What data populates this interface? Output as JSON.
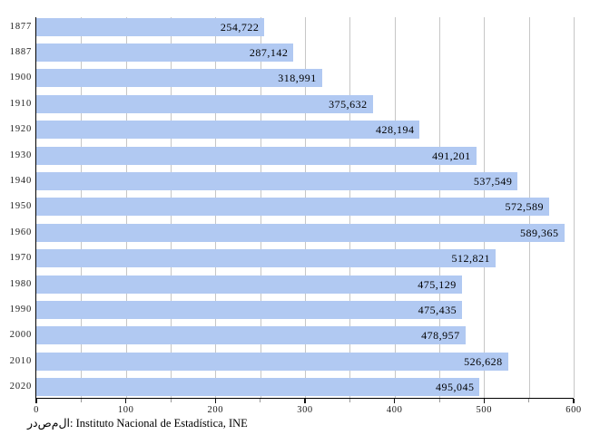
{
  "chart_data": {
    "type": "bar",
    "orientation": "horizontal",
    "categories": [
      "1877",
      "1887",
      "1900",
      "1910",
      "1920",
      "1930",
      "1940",
      "1950",
      "1960",
      "1970",
      "1980",
      "1990",
      "2000",
      "2010",
      "2020"
    ],
    "values": [
      254722,
      287142,
      318991,
      375632,
      428194,
      491201,
      537549,
      572589,
      589365,
      512821,
      475129,
      475435,
      478957,
      526628,
      495045
    ],
    "value_labels": [
      "254,722",
      "287,142",
      "318,991",
      "375,632",
      "428,194",
      "491,201",
      "537,549",
      "572,589",
      "589,365",
      "512,821",
      "475,129",
      "475,435",
      "478,957",
      "526,628",
      "495,045"
    ],
    "x_axis": {
      "unit_divisor": 1000,
      "lim": [
        0,
        600
      ],
      "major_ticks": [
        "0",
        "100",
        "200",
        "300",
        "400",
        "500",
        "600"
      ],
      "minor_tick_step": 50,
      "grid_step": 50,
      "grid": true
    },
    "colors": {
      "bar_fill": "#b1c9f2",
      "grid_line": "#c6c6c6",
      "axis_line": "#000000",
      "minor_tick": "#999999",
      "text": "#111111"
    }
  },
  "source_note": {
    "text": "ا‌ل‌م‌ص‌د‌ر: Instituto Nacional de Estadística, INE"
  }
}
